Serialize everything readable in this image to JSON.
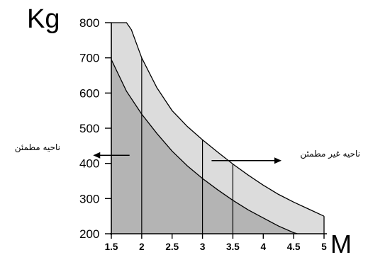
{
  "chart_data": {
    "type": "area",
    "title": "",
    "ylabel": "Kg",
    "xlabel": "M",
    "x_ticks": [
      "1.5",
      "2",
      "2.5",
      "3",
      "3.5",
      "4",
      "4.5",
      "5"
    ],
    "y_ticks": [
      "200",
      "300",
      "400",
      "500",
      "600",
      "700",
      "800"
    ],
    "xlim": [
      1.5,
      5
    ],
    "ylim": [
      200,
      800
    ],
    "grid": false,
    "legend": "none",
    "colors": {
      "safe_zone": "#b4b4b4",
      "unsafe_zone": "#dcdcdc",
      "line": "#000000",
      "background": "#ffffff"
    },
    "series": [
      {
        "x": [
          1.5,
          1.75,
          2.0,
          2.25,
          2.5,
          2.75,
          3.0,
          3.25,
          3.5,
          3.75,
          4.0,
          4.25,
          4.5,
          4.56
        ],
        "y": [
          695,
          605,
          540,
          485,
          435,
          393,
          357,
          325,
          295,
          268,
          245,
          222,
          203,
          200
        ]
      },
      {
        "x": [
          1.5,
          1.75,
          1.83,
          2.0,
          2.25,
          2.5,
          2.75,
          3.0,
          3.25,
          3.5,
          3.75,
          4.0,
          4.25,
          4.5,
          4.75,
          5.0
        ],
        "y": [
          800,
          800,
          780,
          700,
          615,
          550,
          505,
          467,
          432,
          398,
          367,
          338,
          312,
          290,
          270,
          250
        ]
      }
    ],
    "vertical_lines": [
      {
        "x": 2.0,
        "y_top": 700
      },
      {
        "x": 3.0,
        "y_top": 467
      },
      {
        "x": 3.5,
        "y_top": 398
      }
    ],
    "annotations": {
      "safe_zone": "ناحیه مطمئن",
      "unsafe_zone": "ناحیه غیر مطمئن",
      "safe_zone_arrow": {
        "x_from": 1.8,
        "x_to": 1.2,
        "y": 423
      },
      "unsafe_zone_arrow": {
        "x_from": 3.15,
        "x_to": 4.3,
        "y": 408
      }
    }
  }
}
